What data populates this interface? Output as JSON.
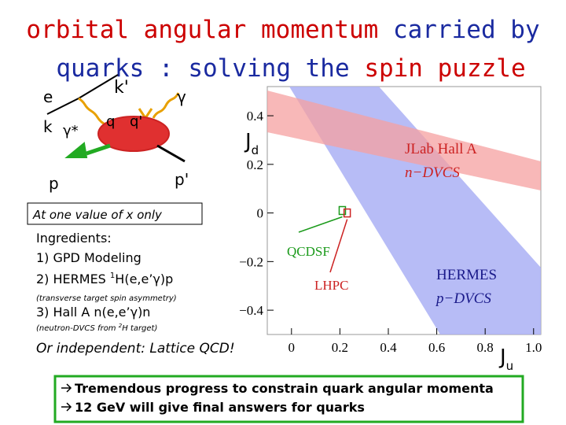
{
  "title": {
    "line1": [
      "orbital angular momentum",
      "carried by"
    ],
    "line2": [
      "quarks : solving the",
      "spin puzzle"
    ]
  },
  "diagram": {
    "e": "e",
    "k_out": "k'",
    "k_in": "k",
    "gamma_star": "γ*",
    "q": "q",
    "q_out": "q'",
    "gamma": "γ",
    "p": "p",
    "p_out": "p'"
  },
  "jd": {
    "main": "J",
    "sub": "d"
  },
  "ju": {
    "main": "J",
    "sub": "u"
  },
  "note": "At one value of x only",
  "ingredients": {
    "heading": "Ingredients:",
    "item1": "1) GPD Modeling",
    "item2": {
      "pre": "2) HERMES ",
      "sup": "1",
      "main": "H(e,e’γ)p"
    },
    "item2_note": "(transverse target spin asymmetry)",
    "item3": "3) Hall A n(e,e’γ)n",
    "item3_note": {
      "pre": "(neutron-DVCS from ",
      "sup": "2",
      "main": "H target)"
    }
  },
  "lattice": "Or independent: Lattice QCD!",
  "summary": [
    "Tremendous progress to constrain quark angular momenta",
    "12 GeV will give final answers for quarks"
  ],
  "chart_data": {
    "type": "band",
    "xlim": [
      -0.1,
      1.03
    ],
    "ylim": [
      -0.5,
      0.52
    ],
    "xticks": [
      0,
      0.2,
      0.4,
      0.6,
      0.8,
      {
        "value": 1,
        "label": "1.0"
      }
    ],
    "yticks": [
      {
        "value": -0.4,
        "label": "−0.4"
      },
      {
        "value": -0.2,
        "label": "−0.2"
      },
      0,
      0.2,
      0.4
    ],
    "series": [
      {
        "name": "QCDSF",
        "color": "#1a9a1a",
        "x": [
          0.21
        ],
        "y": [
          0.01
        ]
      },
      {
        "name": "LHPC",
        "color": "#cc2222",
        "x": [
          0.23
        ],
        "y": [
          0.0
        ]
      }
    ],
    "annotations": [
      {
        "lines": [
          "JLab Hall A",
          "n−DVCS"
        ],
        "color": "#cc2222"
      },
      {
        "lines": [
          "HERMES",
          "p−DVCS"
        ],
        "color": "#1a1a8a"
      }
    ]
  }
}
